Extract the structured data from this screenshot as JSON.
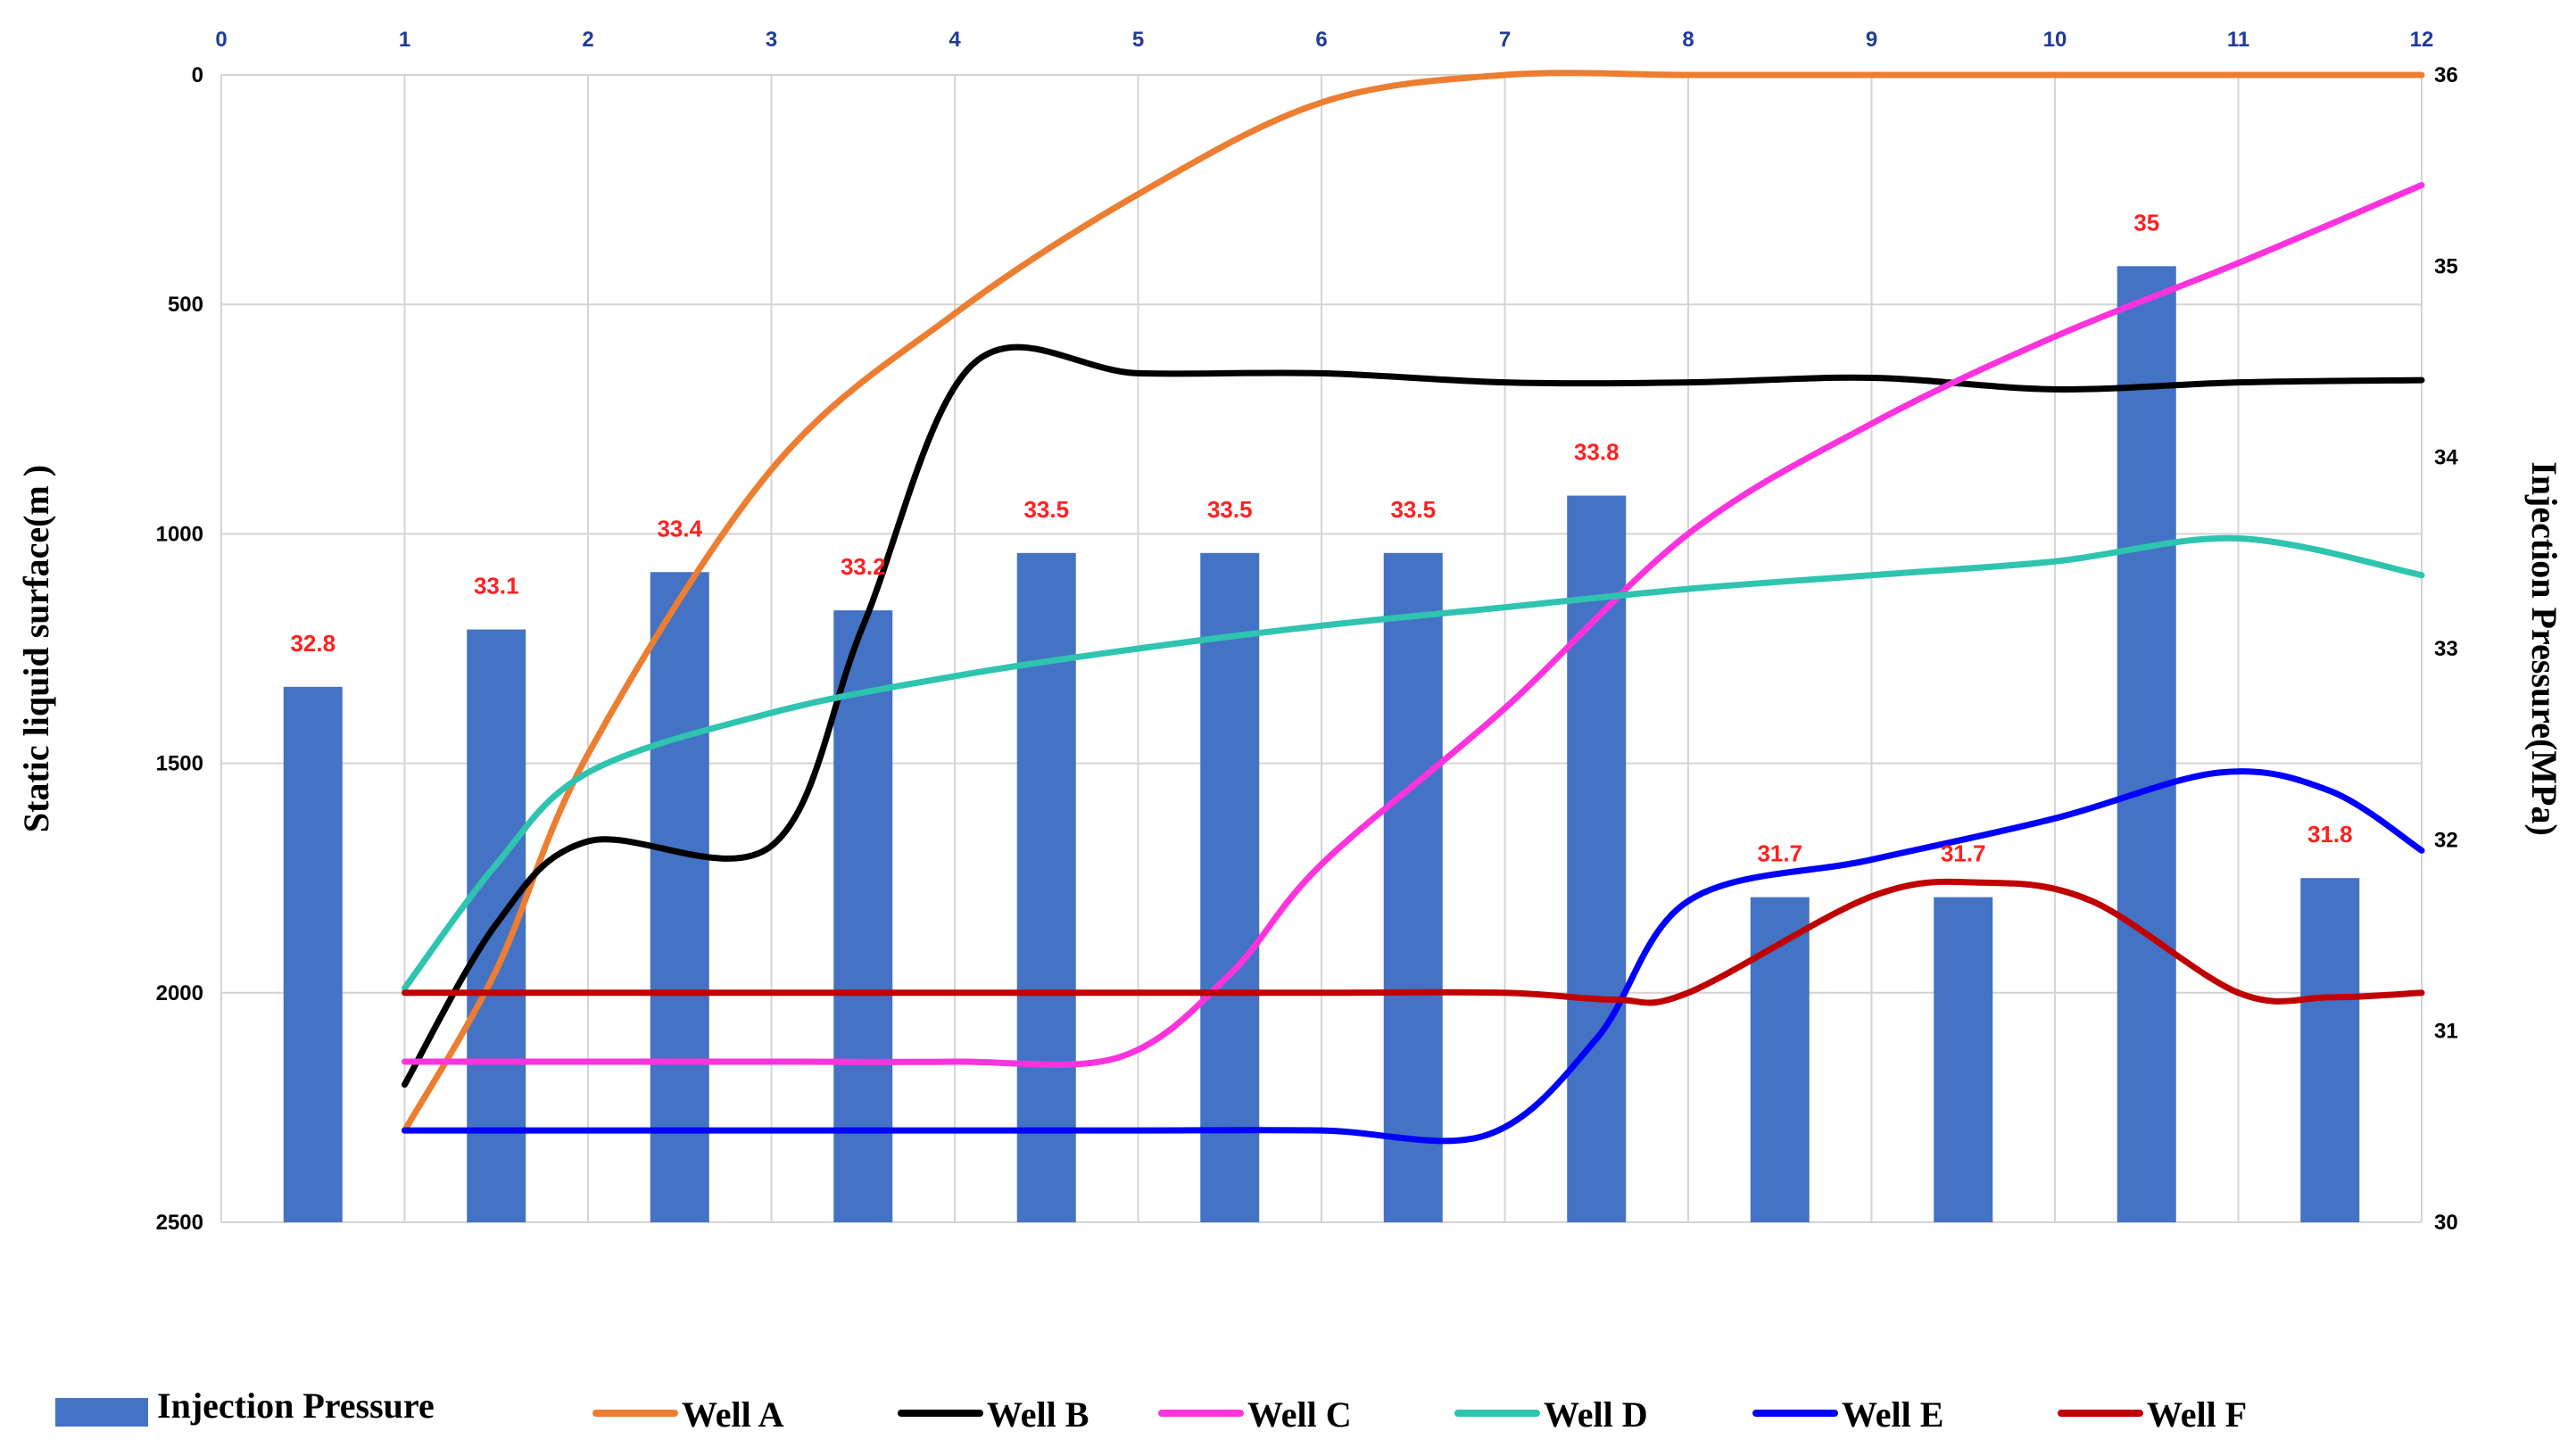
{
  "chart_data": {
    "type": "bar+line",
    "xlim": [
      0,
      12
    ],
    "x_ticks": [
      "0",
      "1",
      "2",
      "3",
      "4",
      "5",
      "6",
      "7",
      "8",
      "9",
      "10",
      "11",
      "12"
    ],
    "left_axis": {
      "label": "Static liquid surface(m )",
      "range": [
        0,
        2500
      ],
      "inverted": true,
      "ticks": [
        "0",
        "500",
        "1000",
        "1500",
        "2000",
        "2500"
      ]
    },
    "right_axis": {
      "label": "Injection Pressure(MPa)",
      "range": [
        30,
        36
      ],
      "ticks": [
        "30",
        "31",
        "32",
        "33",
        "34",
        "35",
        "36"
      ]
    },
    "grid": true,
    "legend_position": "bottom",
    "bars": {
      "name": "Injection Pressure",
      "color": "#4472C4",
      "x": [
        0.5,
        1.5,
        2.5,
        3.5,
        4.5,
        5.5,
        6.5,
        7.5,
        8.5,
        9.5,
        10.5,
        11.5
      ],
      "values": [
        32.8,
        33.1,
        33.4,
        33.2,
        33.5,
        33.5,
        33.5,
        33.8,
        31.7,
        31.7,
        35,
        31.8
      ],
      "labels": [
        "32.8",
        "33.1",
        "33.4",
        "33.2",
        "33.5",
        "33.5",
        "33.5",
        "33.8",
        "31.7",
        "31.7",
        "35",
        "31.8"
      ]
    },
    "series": [
      {
        "name": "Well A",
        "color": "#ED7D31",
        "points": [
          [
            1,
            2300
          ],
          [
            1.5,
            1950
          ],
          [
            2,
            1480
          ],
          [
            3,
            860
          ],
          [
            4,
            520
          ],
          [
            5,
            260
          ],
          [
            6,
            60
          ],
          [
            7,
            0
          ],
          [
            8,
            0
          ],
          [
            9,
            0
          ],
          [
            10,
            0
          ],
          [
            11,
            0
          ],
          [
            12,
            0
          ]
        ]
      },
      {
        "name": "Well B",
        "color": "#000000",
        "points": [
          [
            1,
            2200
          ],
          [
            1.5,
            1850
          ],
          [
            2,
            1670
          ],
          [
            3,
            1680
          ],
          [
            3.5,
            1200
          ],
          [
            4.1,
            630
          ],
          [
            5,
            650
          ],
          [
            6,
            650
          ],
          [
            7,
            670
          ],
          [
            8,
            670
          ],
          [
            9,
            660
          ],
          [
            10,
            685
          ],
          [
            11,
            670
          ],
          [
            12,
            665
          ]
        ]
      },
      {
        "name": "Well C",
        "color": "#FF33DD",
        "points": [
          [
            1,
            2150
          ],
          [
            2,
            2150
          ],
          [
            3,
            2150
          ],
          [
            4,
            2150
          ],
          [
            4.9,
            2140
          ],
          [
            5.5,
            1960
          ],
          [
            6,
            1720
          ],
          [
            7,
            1380
          ],
          [
            8,
            1000
          ],
          [
            9,
            760
          ],
          [
            10,
            570
          ],
          [
            11,
            410
          ],
          [
            12,
            240
          ]
        ]
      },
      {
        "name": "Well D",
        "color": "#2EC4B0",
        "points": [
          [
            1,
            1990
          ],
          [
            1.5,
            1720
          ],
          [
            2,
            1520
          ],
          [
            3,
            1390
          ],
          [
            4,
            1310
          ],
          [
            5,
            1250
          ],
          [
            6,
            1200
          ],
          [
            7,
            1160
          ],
          [
            8,
            1120
          ],
          [
            9,
            1090
          ],
          [
            10,
            1060
          ],
          [
            11,
            1010
          ],
          [
            12,
            1090
          ]
        ]
      },
      {
        "name": "Well E",
        "color": "#0000FF",
        "points": [
          [
            1,
            2300
          ],
          [
            2,
            2300
          ],
          [
            3,
            2300
          ],
          [
            4,
            2300
          ],
          [
            5,
            2300
          ],
          [
            6,
            2300
          ],
          [
            6.9,
            2310
          ],
          [
            7.5,
            2100
          ],
          [
            8,
            1800
          ],
          [
            9,
            1710
          ],
          [
            10,
            1620
          ],
          [
            10.9,
            1520
          ],
          [
            11.5,
            1560
          ],
          [
            12,
            1690
          ]
        ]
      },
      {
        "name": "Well F",
        "color": "#C00000",
        "points": [
          [
            1,
            2000
          ],
          [
            2,
            2000
          ],
          [
            3,
            2000
          ],
          [
            4,
            2000
          ],
          [
            5,
            2000
          ],
          [
            6,
            2000
          ],
          [
            7,
            2000
          ],
          [
            7.6,
            2015
          ],
          [
            8,
            2000
          ],
          [
            9,
            1790
          ],
          [
            9.6,
            1760
          ],
          [
            10.2,
            1800
          ],
          [
            11,
            2000
          ],
          [
            11.5,
            2010
          ],
          [
            12,
            2000
          ]
        ]
      }
    ]
  }
}
